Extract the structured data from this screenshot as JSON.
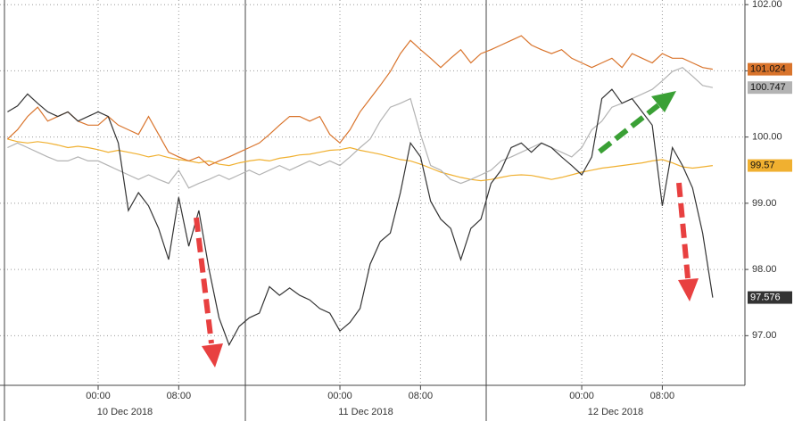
{
  "chart_data": {
    "type": "line",
    "x": [
      -9,
      -8,
      -7,
      -6,
      -5,
      -4,
      -3,
      -2,
      -1,
      0,
      1,
      2,
      3,
      4,
      5,
      6,
      7,
      8,
      9,
      10,
      11,
      12,
      13,
      14,
      15,
      16,
      17,
      18,
      19,
      20,
      21,
      22,
      23,
      24,
      25,
      26,
      27,
      28,
      29,
      30,
      31,
      32,
      33,
      34,
      35,
      36,
      37,
      38,
      39,
      40,
      41,
      42,
      43,
      44,
      45,
      46,
      47,
      48,
      49,
      50,
      51,
      52,
      53,
      54,
      55,
      56,
      57,
      58,
      59,
      60,
      61
    ],
    "xlim": [
      -9.74,
      64.2
    ],
    "xticks": [
      {
        "value": 0,
        "label": "00:00"
      },
      {
        "value": 8,
        "label": "08:00"
      },
      {
        "value": 24,
        "label": "00:00"
      },
      {
        "value": 32,
        "label": "08:00"
      },
      {
        "value": 48,
        "label": "00:00"
      },
      {
        "value": 56,
        "label": "08:00"
      }
    ],
    "date_labels": [
      "10 Dec 2018",
      "11 Dec 2018",
      "12 Dec 2018"
    ],
    "ylim": [
      96.25,
      102.07
    ],
    "yticks": [
      {
        "value": 97,
        "label": "97.00"
      },
      {
        "value": 98,
        "label": "98.00"
      },
      {
        "value": 99,
        "label": "99.00"
      },
      {
        "value": 100,
        "label": "100.00"
      },
      {
        "value": 101,
        "label": "101.00"
      },
      {
        "value": 102,
        "label": "102.00"
      }
    ],
    "grid": true,
    "series": [
      {
        "color": "#f0b030",
        "values": [
          99.97,
          99.93,
          99.91,
          99.93,
          99.91,
          99.88,
          99.84,
          99.86,
          99.84,
          99.81,
          99.77,
          99.8,
          99.77,
          99.74,
          99.7,
          99.73,
          99.69,
          99.66,
          99.64,
          99.61,
          99.64,
          99.59,
          99.57,
          99.61,
          99.64,
          99.66,
          99.64,
          99.68,
          99.7,
          99.73,
          99.74,
          99.77,
          99.8,
          99.81,
          99.84,
          99.8,
          99.77,
          99.74,
          99.7,
          99.66,
          99.64,
          99.59,
          99.53,
          99.47,
          99.43,
          99.39,
          99.36,
          99.34,
          99.36,
          99.39,
          99.42,
          99.43,
          99.42,
          99.39,
          99.36,
          99.39,
          99.43,
          99.47,
          99.5,
          99.53,
          99.55,
          99.57,
          99.59,
          99.61,
          99.64,
          99.66,
          99.61,
          99.55,
          99.53,
          99.55,
          99.57
        ]
      },
      {
        "color": "#b3b3b3",
        "values": [
          99.84,
          99.91,
          99.84,
          99.77,
          99.7,
          99.64,
          99.64,
          99.7,
          99.64,
          99.64,
          99.57,
          99.5,
          99.43,
          99.36,
          99.43,
          99.36,
          99.3,
          99.5,
          99.23,
          99.3,
          99.36,
          99.43,
          99.36,
          99.43,
          99.5,
          99.43,
          99.5,
          99.57,
          99.5,
          99.57,
          99.64,
          99.57,
          99.64,
          99.57,
          99.7,
          99.84,
          99.97,
          100.24,
          100.45,
          100.51,
          100.58,
          100.04,
          99.57,
          99.5,
          99.36,
          99.3,
          99.36,
          99.43,
          99.5,
          99.64,
          99.7,
          99.77,
          99.84,
          99.91,
          99.84,
          99.77,
          99.7,
          99.84,
          100.11,
          100.24,
          100.45,
          100.51,
          100.58,
          100.65,
          100.72,
          100.85,
          100.99,
          101.05,
          100.92,
          100.78,
          100.747
        ]
      },
      {
        "color": "#d9742c",
        "values": [
          99.97,
          100.11,
          100.31,
          100.45,
          100.24,
          100.31,
          100.38,
          100.24,
          100.18,
          100.18,
          100.31,
          100.18,
          100.11,
          100.04,
          100.31,
          100.04,
          99.77,
          99.7,
          99.64,
          99.7,
          99.57,
          99.64,
          99.7,
          99.77,
          99.84,
          99.91,
          100.04,
          100.18,
          100.31,
          100.31,
          100.24,
          100.31,
          100.04,
          99.91,
          100.11,
          100.38,
          100.58,
          100.78,
          100.99,
          101.26,
          101.46,
          101.32,
          101.19,
          101.05,
          101.19,
          101.32,
          101.12,
          101.26,
          101.32,
          101.39,
          101.46,
          101.53,
          101.39,
          101.32,
          101.26,
          101.32,
          101.19,
          101.12,
          101.05,
          101.12,
          101.19,
          101.05,
          101.26,
          101.19,
          101.12,
          101.26,
          101.19,
          101.19,
          101.12,
          101.05,
          101.024
        ]
      },
      {
        "color": "#333333",
        "values": [
          100.38,
          100.47,
          100.65,
          100.51,
          100.38,
          100.31,
          100.38,
          100.24,
          100.31,
          100.38,
          100.31,
          99.91,
          98.89,
          99.16,
          98.96,
          98.62,
          98.15,
          99.09,
          98.35,
          98.89,
          98.01,
          97.27,
          96.86,
          97.14,
          97.27,
          97.34,
          97.74,
          97.61,
          97.72,
          97.61,
          97.54,
          97.41,
          97.34,
          97.07,
          97.2,
          97.41,
          98.08,
          98.42,
          98.55,
          99.16,
          99.91,
          99.7,
          99.03,
          98.76,
          98.62,
          98.15,
          98.62,
          98.76,
          99.3,
          99.5,
          99.84,
          99.91,
          99.77,
          99.91,
          99.84,
          99.7,
          99.57,
          99.43,
          99.7,
          100.58,
          100.72,
          100.51,
          100.58,
          100.38,
          100.18,
          98.96,
          99.84,
          99.57,
          99.23,
          98.55,
          97.576
        ]
      }
    ]
  }
}
